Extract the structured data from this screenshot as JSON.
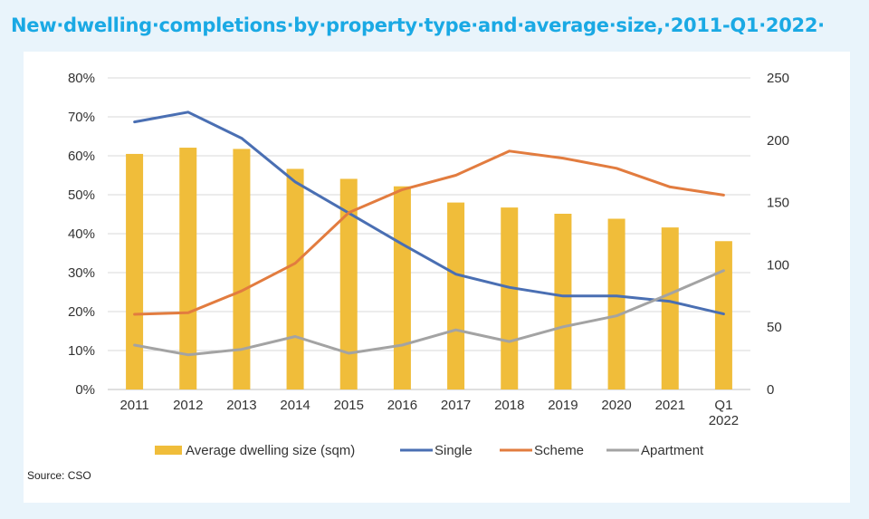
{
  "title": "New·dwelling·completions·by·property·type·and·average·size,·2011-Q1·2022·",
  "source": "Source: CSO",
  "colors": {
    "bar": "#f0bd3a",
    "single": "#4a6fb3",
    "scheme": "#e27c3f",
    "apartment": "#a3a3a3",
    "grid": "#d9d9d9"
  },
  "chart_data": {
    "type": "bar",
    "categories": [
      "2011",
      "2012",
      "2013",
      "2014",
      "2015",
      "2016",
      "2017",
      "2018",
      "2019",
      "2020",
      "2021",
      "Q1 2022"
    ],
    "bars": {
      "name": "Average dwelling size (sqm)",
      "axis": "right",
      "values": [
        189,
        194,
        193,
        177,
        169,
        163,
        150,
        146,
        141,
        137,
        130,
        119
      ]
    },
    "lines": [
      {
        "name": "Single",
        "axis": "left",
        "values": [
          68.7,
          71.2,
          64.5,
          53.3,
          45.3,
          37.3,
          29.6,
          26.2,
          24.0,
          24.0,
          22.6,
          19.4
        ]
      },
      {
        "name": "Scheme",
        "axis": "left",
        "values": [
          19.3,
          19.7,
          25.3,
          32.4,
          45.4,
          51.3,
          55.0,
          61.2,
          59.4,
          56.8,
          52.0,
          49.9
        ]
      },
      {
        "name": "Apartment",
        "axis": "left",
        "values": [
          11.4,
          8.9,
          10.3,
          13.6,
          9.3,
          11.4,
          15.3,
          12.3,
          16.1,
          18.9,
          24.6,
          30.5
        ]
      }
    ],
    "y_left": {
      "min": 0,
      "max": 80,
      "step": 10,
      "ticks": [
        "0%",
        "10%",
        "20%",
        "30%",
        "40%",
        "50%",
        "60%",
        "70%",
        "80%"
      ]
    },
    "y_right": {
      "min": 0,
      "max": 250,
      "step": 50,
      "ticks": [
        "0",
        "50",
        "100",
        "150",
        "200",
        "250"
      ]
    },
    "grid": true,
    "legend_position": "bottom"
  }
}
